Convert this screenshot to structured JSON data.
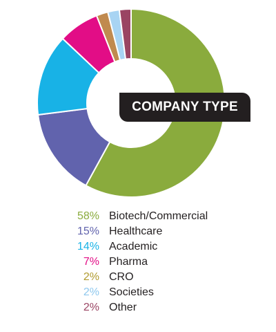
{
  "chart_data": {
    "type": "pie",
    "title": "COMPANY TYPE",
    "categories": [
      "Biotech/Commercial",
      "Healthcare",
      "Academic",
      "Pharma",
      "CRO",
      "Societies",
      "Other"
    ],
    "values": [
      58,
      15,
      14,
      7,
      2,
      2,
      2
    ],
    "percent_labels": [
      "58%",
      "15%",
      "14%",
      "7%",
      "2%",
      "2%",
      "2%"
    ],
    "colors": [
      "#8aab3d",
      "#6163ad",
      "#18b2e6",
      "#e20d86",
      "#c08a4f",
      "#a8d4f3",
      "#9a4463"
    ],
    "label_colors": [
      "#8aab3d",
      "#6163ad",
      "#18b2e6",
      "#e20d86",
      "#b09a2e",
      "#8ec8ee",
      "#9a4463"
    ],
    "legend_position": "bottom",
    "donut": true
  }
}
